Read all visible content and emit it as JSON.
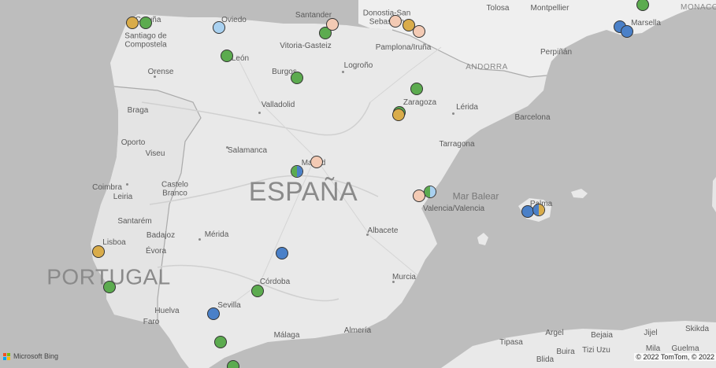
{
  "colors": {
    "green": "#5cab4f",
    "blue": "#4a80c8",
    "gold": "#d9ac4a",
    "peach": "#f3cab4",
    "lightblue": "#a9d1f0"
  },
  "labels": {
    "countries": [
      {
        "name": "ESPAÑA"
      },
      {
        "name": "PORTUGAL"
      }
    ],
    "seas": [
      {
        "name": "Mar Balear"
      }
    ],
    "regions": [
      {
        "name": "ANDORRA"
      },
      {
        "name": "MONACO"
      }
    ],
    "cities": [
      "Coruña",
      "Santiago de\nCompostela",
      "Oviedo",
      "Santander",
      "Donostia-San\nSebastián",
      "Tolosa",
      "Montpellier",
      "Marsella",
      "León",
      "Vitoria-Gasteiz",
      "Pamplona/Iruña",
      "Perpiñán",
      "Orense",
      "Burgos",
      "Logroño",
      "Braga",
      "Valladolid",
      "Zaragoza",
      "Lérida",
      "Barcelona",
      "Oporto",
      "Viseu",
      "Salamanca",
      "Tarragona",
      "Madrid",
      "Coimbra",
      "Castelo\nBranco",
      "Leiria",
      "Valencia/Valencia",
      "Palma",
      "Santarém",
      "Badajoz",
      "Mérida",
      "Albacete",
      "Lisboa",
      "Évora",
      "Córdoba",
      "Murcia",
      "Sevilla",
      "Huelva",
      "Faro",
      "Málaga",
      "Almería",
      "Argel",
      "Bejaia",
      "Jijel",
      "Skikda",
      "Tipasa",
      "Tizi Uzu",
      "Buira",
      "Blida",
      "Mila",
      "Guelma"
    ]
  },
  "markers": [
    {
      "name": "coruna-a",
      "color": "gold"
    },
    {
      "name": "coruna-b",
      "color": "green"
    },
    {
      "name": "oviedo",
      "color": "lightblue"
    },
    {
      "name": "santander-a",
      "color": "green"
    },
    {
      "name": "santander-b",
      "color": "peach"
    },
    {
      "name": "sansebastian-a",
      "color": "peach"
    },
    {
      "name": "sansebastian-b",
      "color": "gold"
    },
    {
      "name": "sansebastian-c",
      "color": "peach"
    },
    {
      "name": "leon",
      "color": "green"
    },
    {
      "name": "burgos",
      "color": "green"
    },
    {
      "name": "aragon-north",
      "color": "green"
    },
    {
      "name": "zaragoza-a",
      "color": "green"
    },
    {
      "name": "zaragoza-b",
      "color": "gold"
    },
    {
      "name": "madrid-west",
      "color": "split",
      "left": "green",
      "right": "blue"
    },
    {
      "name": "madrid",
      "color": "peach"
    },
    {
      "name": "valencia-a",
      "color": "peach"
    },
    {
      "name": "valencia-b",
      "color": "split",
      "left": "green",
      "right": "lightblue"
    },
    {
      "name": "palma-a",
      "color": "blue"
    },
    {
      "name": "palma-b",
      "color": "split",
      "left": "blue",
      "right": "gold"
    },
    {
      "name": "marsella-a",
      "color": "blue"
    },
    {
      "name": "marsella-b",
      "color": "blue"
    },
    {
      "name": "france-coast",
      "color": "green"
    },
    {
      "name": "lisboa",
      "color": "gold"
    },
    {
      "name": "setubal",
      "color": "green"
    },
    {
      "name": "extremadura",
      "color": "blue"
    },
    {
      "name": "cordoba",
      "color": "green"
    },
    {
      "name": "sevilla",
      "color": "blue"
    },
    {
      "name": "cadiz",
      "color": "green"
    },
    {
      "name": "south-edge",
      "color": "green"
    }
  ],
  "attribution": {
    "logo_text": "Microsoft Bing",
    "copyright": "© 2022 TomTom, © 2022"
  }
}
